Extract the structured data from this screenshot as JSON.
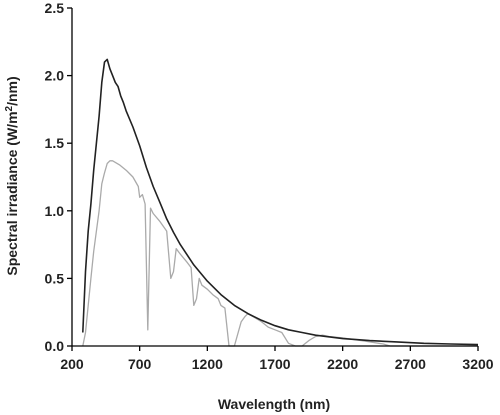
{
  "chart_data": {
    "type": "line",
    "title": "",
    "xlabel": "Wavelength (nm)",
    "ylabel_main": "Spectral irradiance (W/m",
    "ylabel_sup": "2",
    "ylabel_end": "/nm)",
    "xlim": [
      200,
      3200
    ],
    "ylim": [
      0,
      2.5
    ],
    "xticks": [
      200,
      700,
      1200,
      1700,
      2200,
      2700,
      3200
    ],
    "xtick_labels": [
      "200",
      "700",
      "1200",
      "1700",
      "2200",
      "2700",
      "3200"
    ],
    "yticks": [
      0,
      0.5,
      1,
      1.5,
      2,
      2.5
    ],
    "ytick_labels": [
      "0.0",
      "0.5",
      "1.0",
      "1.5",
      "2.0",
      "2.5"
    ],
    "grid": false,
    "legend": "none",
    "series": [
      {
        "color": "#222222",
        "x": [
          280,
          300,
          320,
          340,
          360,
          380,
          400,
          420,
          440,
          460,
          480,
          500,
          520,
          540,
          560,
          580,
          600,
          650,
          700,
          750,
          800,
          850,
          900,
          950,
          1000,
          1100,
          1200,
          1300,
          1400,
          1500,
          1600,
          1700,
          1800,
          1900,
          2000,
          2200,
          2400,
          2600,
          2800,
          3000,
          3200
        ],
        "y": [
          0.1,
          0.55,
          0.85,
          1.05,
          1.3,
          1.5,
          1.7,
          1.95,
          2.1,
          2.12,
          2.05,
          2.0,
          1.95,
          1.92,
          1.85,
          1.8,
          1.74,
          1.62,
          1.48,
          1.32,
          1.18,
          1.06,
          0.94,
          0.84,
          0.75,
          0.6,
          0.48,
          0.38,
          0.3,
          0.24,
          0.19,
          0.15,
          0.12,
          0.1,
          0.08,
          0.055,
          0.04,
          0.03,
          0.02,
          0.015,
          0.01
        ]
      },
      {
        "color": "#aaaaaa",
        "x": [
          280,
          300,
          320,
          340,
          360,
          380,
          400,
          420,
          440,
          460,
          480,
          500,
          550,
          600,
          650,
          690,
          700,
          720,
          740,
          760,
          780,
          800,
          850,
          900,
          930,
          950,
          970,
          1000,
          1050,
          1080,
          1100,
          1120,
          1140,
          1160,
          1200,
          1240,
          1280,
          1300,
          1330,
          1360,
          1400,
          1450,
          1480,
          1500,
          1550,
          1600,
          1650,
          1700,
          1750,
          1800,
          1850,
          1900,
          1950,
          2000,
          2050,
          2100,
          2200,
          2300,
          2400,
          2500,
          2550,
          2600,
          2800,
          3000,
          3200
        ],
        "y": [
          0.0,
          0.1,
          0.3,
          0.5,
          0.7,
          0.85,
          1.0,
          1.2,
          1.28,
          1.35,
          1.37,
          1.37,
          1.34,
          1.3,
          1.25,
          1.18,
          1.1,
          1.12,
          1.05,
          0.12,
          1.02,
          0.98,
          0.92,
          0.85,
          0.5,
          0.55,
          0.72,
          0.68,
          0.62,
          0.58,
          0.3,
          0.35,
          0.5,
          0.45,
          0.42,
          0.38,
          0.35,
          0.3,
          0.28,
          0.0,
          0.0,
          0.18,
          0.22,
          0.24,
          0.21,
          0.18,
          0.14,
          0.12,
          0.1,
          0.02,
          0.0,
          0.0,
          0.04,
          0.07,
          0.08,
          0.07,
          0.06,
          0.045,
          0.03,
          0.015,
          0.0,
          0.0,
          0.0,
          0.0,
          0.0
        ]
      }
    ]
  }
}
